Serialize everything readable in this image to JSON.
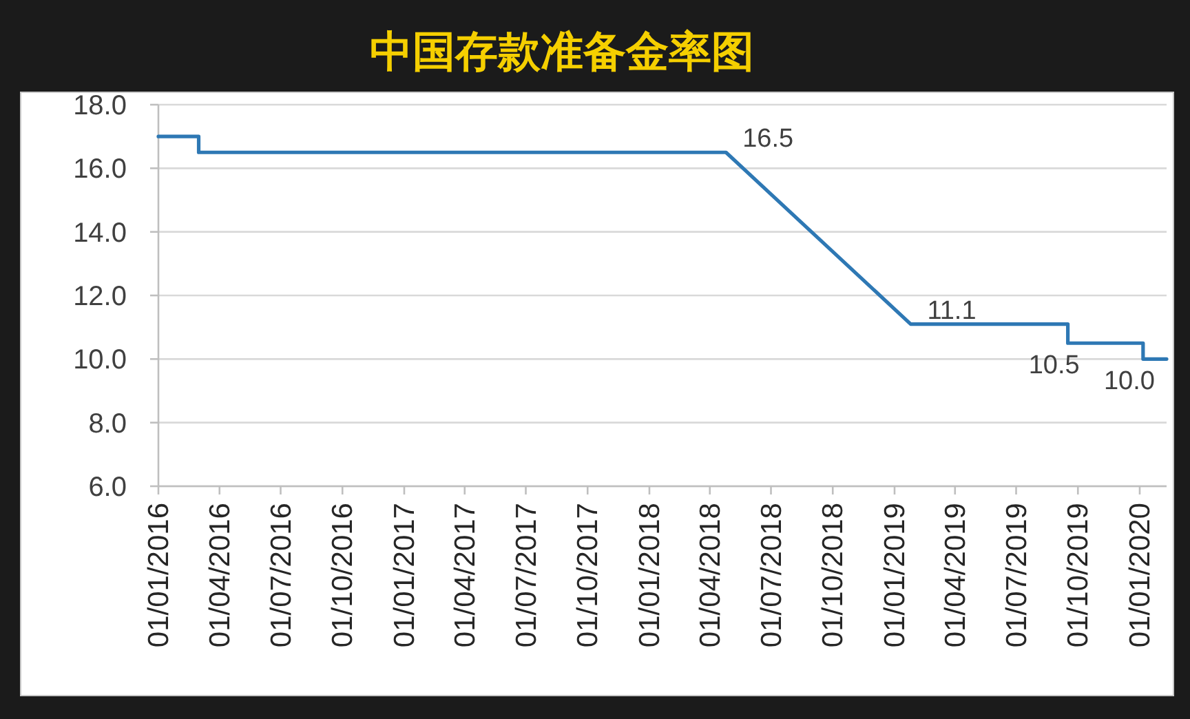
{
  "chart_data": {
    "type": "line",
    "title": "中国存款准备金率图",
    "x": [
      "2016-01-01",
      "2016-03-01",
      "2016-03-01",
      "2018-04-25",
      "2019-01-25",
      "2019-09-16",
      "2019-09-16",
      "2020-01-06",
      "2020-01-06",
      "2020-02-10"
    ],
    "values": [
      17.0,
      17.0,
      16.5,
      16.5,
      11.1,
      11.1,
      10.5,
      10.5,
      10.0,
      10.0
    ],
    "value_labels": [
      null,
      null,
      null,
      "16.5",
      "11.1",
      null,
      "10.5",
      null,
      "10.0",
      null
    ],
    "color": "#2e78b4",
    "xlim": [
      "2016-01-01",
      "2020-02-10"
    ],
    "xticks": [
      {
        "value": "2016-01-01",
        "label": "01/01/2016"
      },
      {
        "value": "2016-04-01",
        "label": "01/04/2016"
      },
      {
        "value": "2016-07-01",
        "label": "01/07/2016"
      },
      {
        "value": "2016-10-01",
        "label": "01/10/2016"
      },
      {
        "value": "2017-01-01",
        "label": "01/01/2017"
      },
      {
        "value": "2017-04-01",
        "label": "01/04/2017"
      },
      {
        "value": "2017-07-01",
        "label": "01/07/2017"
      },
      {
        "value": "2017-10-01",
        "label": "01/10/2017"
      },
      {
        "value": "2018-01-01",
        "label": "01/01/2018"
      },
      {
        "value": "2018-04-01",
        "label": "01/04/2018"
      },
      {
        "value": "2018-07-01",
        "label": "01/07/2018"
      },
      {
        "value": "2018-10-01",
        "label": "01/10/2018"
      },
      {
        "value": "2019-01-01",
        "label": "01/01/2019"
      },
      {
        "value": "2019-04-01",
        "label": "01/04/2019"
      },
      {
        "value": "2019-07-01",
        "label": "01/07/2019"
      },
      {
        "value": "2019-10-01",
        "label": "01/10/2019"
      },
      {
        "value": "2020-01-01",
        "label": "01/01/2020"
      }
    ],
    "ylim": [
      6,
      18
    ],
    "yticks": [
      {
        "value": 6,
        "label": "6.0"
      },
      {
        "value": 8,
        "label": "8.0"
      },
      {
        "value": 10,
        "label": "10.0"
      },
      {
        "value": 12,
        "label": "12.0"
      },
      {
        "value": 14,
        "label": "14.0"
      },
      {
        "value": 16,
        "label": "16.0"
      },
      {
        "value": 18,
        "label": "18.0"
      }
    ],
    "grid": "y"
  }
}
